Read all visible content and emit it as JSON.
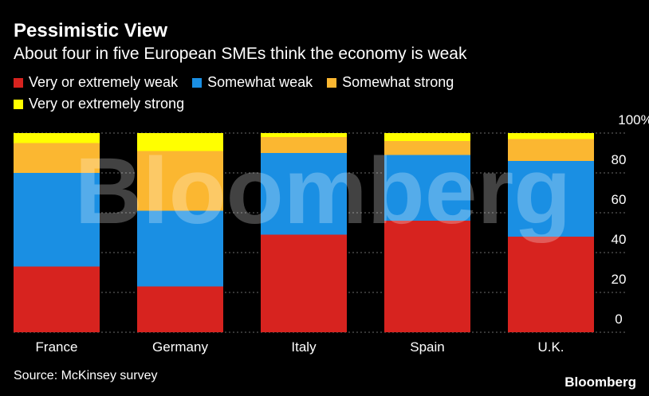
{
  "chart_data": {
    "type": "bar",
    "stacked": true,
    "title": "Pessimistic View",
    "subtitle": "About four in five European SMEs think the economy is weak",
    "categories": [
      "France",
      "Germany",
      "Italy",
      "Spain",
      "U.K."
    ],
    "series": [
      {
        "name": "Very or extremely weak",
        "color": "#d7231f",
        "values": [
          33,
          23,
          49,
          56,
          48
        ]
      },
      {
        "name": "Somewhat weak",
        "color": "#1a8fe3",
        "values": [
          47,
          38,
          41,
          33,
          38
        ]
      },
      {
        "name": "Somewhat strong",
        "color": "#fbb731",
        "values": [
          15,
          30,
          8,
          7,
          11
        ]
      },
      {
        "name": "Very or extremely strong",
        "color": "#ffff00",
        "values": [
          5,
          9,
          2,
          4,
          3
        ]
      }
    ],
    "ylim": [
      0,
      100
    ],
    "yticks": [
      "0",
      "20",
      "40",
      "60",
      "80",
      "100%"
    ],
    "grid": true,
    "legend_position": "top-left",
    "source": "Source: McKinsey survey",
    "watermark": "Bloomberg"
  },
  "branding": {
    "logo_text": "Bloomberg"
  }
}
